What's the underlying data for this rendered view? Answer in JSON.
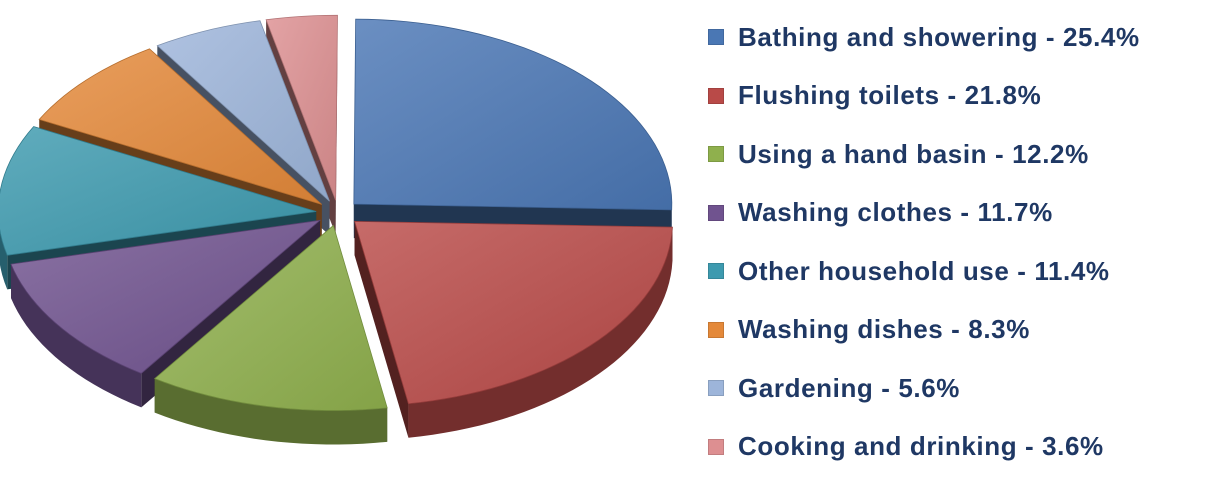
{
  "chart_data": {
    "type": "pie",
    "title": "",
    "legend_position": "right",
    "slices": [
      {
        "label": "Bathing and showering - 25.4%",
        "value": 25.4,
        "color": "#4a77b4"
      },
      {
        "label": "Flushing toilets - 21.8%",
        "value": 21.8,
        "color": "#b94a48"
      },
      {
        "label": "Using a hand basin - 12.2%",
        "value": 12.2,
        "color": "#8fb04d"
      },
      {
        "label": "Washing clothes - 11.7%",
        "value": 11.7,
        "color": "#70538f"
      },
      {
        "label": "Other household use - 11.4%",
        "value": 11.4,
        "color": "#3d9aaf"
      },
      {
        "label": "Washing dishes - 8.3%",
        "value": 8.3,
        "color": "#e4893a"
      },
      {
        "label": "Gardening - 5.6%",
        "value": 5.6,
        "color": "#9db5da"
      },
      {
        "label": "Cooking and drinking - 3.6%",
        "value": 3.6,
        "color": "#dd8f91"
      }
    ]
  }
}
